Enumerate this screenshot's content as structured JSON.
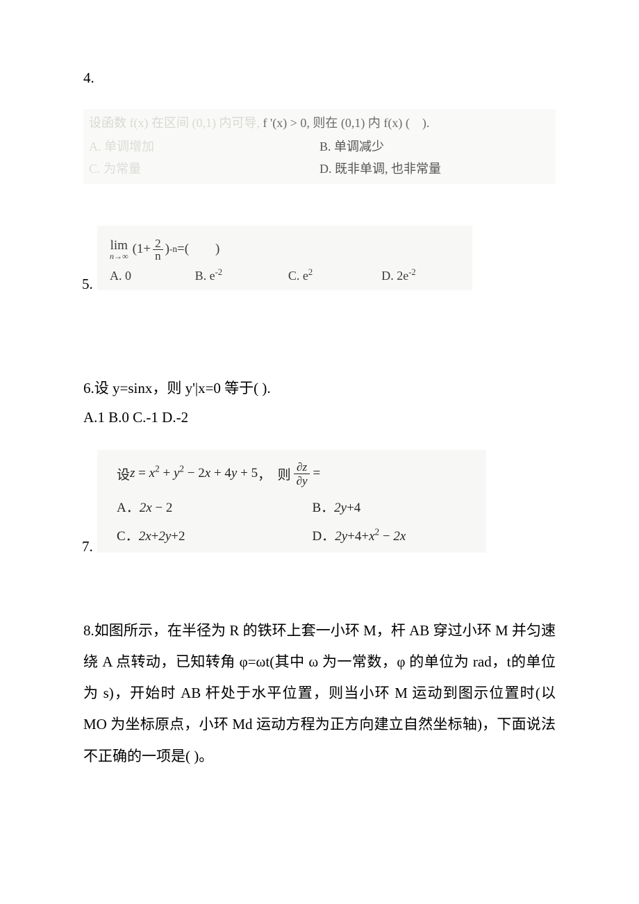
{
  "colors": {
    "page_bg": "#ffffff",
    "panel_bg_1": "#f9f9f7",
    "panel_bg_2": "#f7f7f5",
    "text_main": "#222222",
    "text_faint": "#d8d8d4",
    "text_mid": "#555555"
  },
  "q4": {
    "number": "4.",
    "stem_faint_prefix": "设函数 f(x) 在区间 (0,1) 内可导,",
    "stem_dark_mid": "f '(x) > 0, 则在 (0,1) 内 f(x) (",
    "stem_dark_suffix": ").",
    "options": {
      "A": "A.  单调增加",
      "B": "B.  单调减少",
      "C": "C.  为常量",
      "D": "D.  既非单调, 也非常量"
    }
  },
  "q5": {
    "number": "5.",
    "limit": {
      "lim_label": "lim",
      "lim_sub": "n→∞",
      "open": "(1+",
      "frac_num": "2",
      "frac_den": "n",
      "close_and_exp": " )",
      "exponent": "-n",
      "eq": "=(  )"
    },
    "options": {
      "A": "A. 0",
      "B": "B. e",
      "B_sup": "-2",
      "C": "C. e",
      "C_sup": "2",
      "D": "D. 2e",
      "D_sup": "-2"
    }
  },
  "q6": {
    "line1": "6.设 y=sinx，则 y'|x=0 等于( ).",
    "line2": "A.1 B.0 C.-1 D.-2"
  },
  "q7": {
    "number": "7.",
    "stem_prefix": "设 z = x",
    "stem_mid": " + y",
    "stem_tail": " − 2x + 4y + 5 ，  则",
    "frac_num": "∂z",
    "frac_den": "∂y",
    "stem_eq": " =",
    "options": {
      "A_label": "A．",
      "A_val": "2x − 2",
      "B_label": "B．",
      "B_val": "2y+4",
      "C_label": "C．",
      "C_val": "2x+2y+2",
      "D_label": "D．",
      "D_val": "2y+4+x",
      "D_tail": " − 2x"
    }
  },
  "q8": {
    "text": "8.如图所示，在半径为 R 的铁环上套一小环 M，杆 AB 穿过小环 M 并匀速绕 A 点转动，已知转角 φ=ωt(其中 ω 为一常数，φ 的单位为 rad，t的单位为 s)，开始时 AB 杆处于水平位置，则当小环 M 运动到图示位置时(以 MO 为坐标原点，小环 Md 运动方程为正方向建立自然坐标轴)，下面说法不正确的一项是( )。"
  }
}
